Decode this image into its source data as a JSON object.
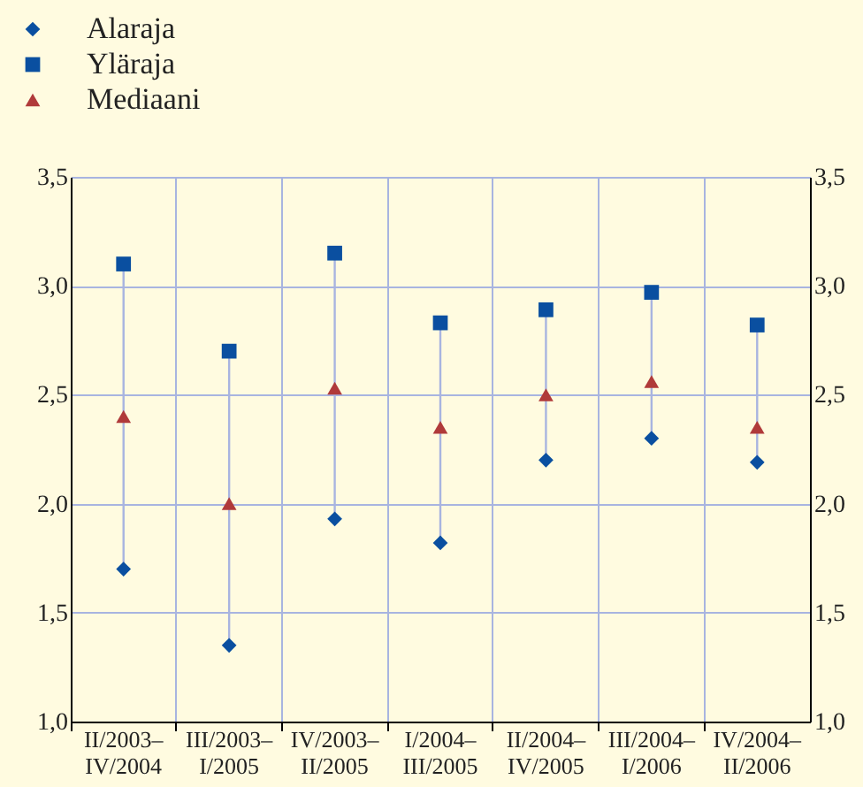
{
  "chart_data": {
    "type": "scatter",
    "categories": [
      "II/2003–\nIV/2004",
      "III/2003–\nI/2005",
      "IV/2003–\nII/2005",
      "I/2004–\nIII/2005",
      "II/2004–\nIV/2005",
      "III/2004–\nI/2006",
      "IV/2004–\nII/2006"
    ],
    "series": [
      {
        "name": "Alaraja",
        "color": "#0a4fa0",
        "marker": "diamond",
        "values": [
          1.7,
          1.35,
          1.93,
          1.82,
          2.2,
          2.3,
          2.19
        ]
      },
      {
        "name": "Yläraja",
        "color": "#0a4fa0",
        "marker": "square",
        "values": [
          3.1,
          2.7,
          3.15,
          2.83,
          2.89,
          2.97,
          2.82
        ]
      },
      {
        "name": "Mediaani",
        "color": "#b03a3a",
        "marker": "triangle",
        "values": [
          2.4,
          2.0,
          2.53,
          2.35,
          2.5,
          2.56,
          2.35
        ]
      }
    ],
    "ylim": [
      1.0,
      3.5
    ],
    "yticks": [
      {
        "value": 1.0,
        "label": "1,0"
      },
      {
        "value": 1.5,
        "label": "1,5"
      },
      {
        "value": 2.0,
        "label": "2,0"
      },
      {
        "value": 2.5,
        "label": "2,5"
      },
      {
        "value": 3.0,
        "label": "3,0"
      },
      {
        "value": 3.5,
        "label": "3,5"
      }
    ],
    "y2lim": [
      1.0,
      3.5
    ],
    "y2ticks": [
      {
        "value": 1.0,
        "label": "1,0"
      },
      {
        "value": 1.5,
        "label": "1,5"
      },
      {
        "value": 2.0,
        "label": "2,0"
      },
      {
        "value": 2.5,
        "label": "2,5"
      },
      {
        "value": 3.0,
        "label": "3,0"
      },
      {
        "value": 3.5,
        "label": "3,5"
      }
    ],
    "grid": true,
    "legend": "top left"
  }
}
